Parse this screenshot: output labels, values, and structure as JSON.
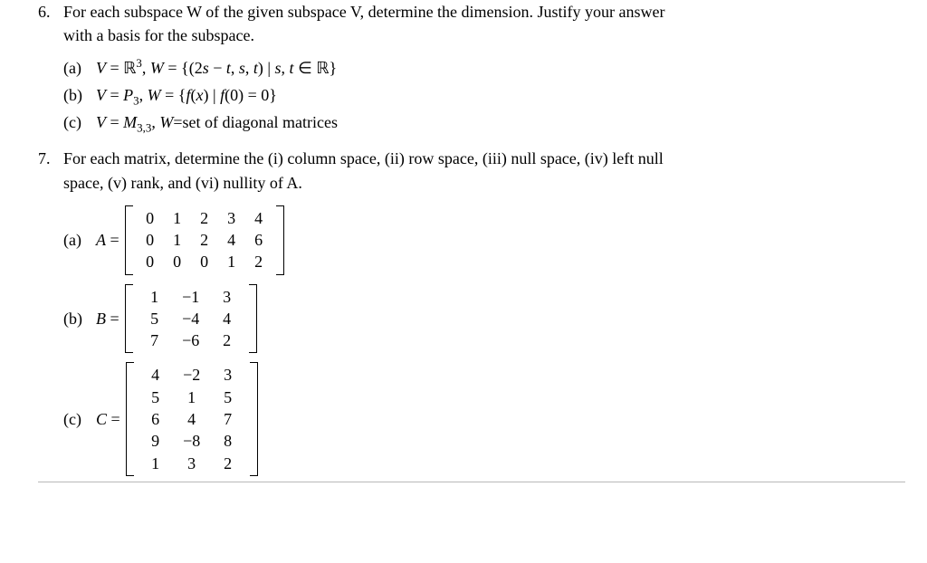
{
  "background_color": "#ffffff",
  "text_color": "#000000",
  "font_family": "Times New Roman",
  "font_size": 18,
  "q6": {
    "number": "6.",
    "prompt_line1": "For each subspace W of the given subspace V, determine the dimension. Justify your answer",
    "prompt_line2": "with a basis for the subspace.",
    "parts": {
      "a": {
        "label": "(a)",
        "text": "V = ℝ³, W = {(2s − t, s, t) | s, t ∈ ℝ}"
      },
      "b": {
        "label": "(b)",
        "text": "V = P₃, W = {f(x) | f(0) = 0}"
      },
      "c": {
        "label": "(c)",
        "text": "V = M₃,₃, W=set of diagonal matrices"
      }
    }
  },
  "q7": {
    "number": "7.",
    "prompt_line1": "For each matrix, determine the (i) column space, (ii) row space, (iii) null space, (iv) left null",
    "prompt_line2": "space, (v) rank, and (vi) nullity of A.",
    "parts": {
      "a": {
        "label": "(a)",
        "lhs": "A =",
        "matrix": {
          "rows": 3,
          "cols": 5,
          "values": [
            [
              "0",
              "1",
              "2",
              "3",
              "4"
            ],
            [
              "0",
              "1",
              "2",
              "4",
              "6"
            ],
            [
              "0",
              "0",
              "0",
              "1",
              "2"
            ]
          ]
        }
      },
      "b": {
        "label": "(b)",
        "lhs": "B =",
        "matrix": {
          "rows": 3,
          "cols": 3,
          "values": [
            [
              "1",
              "−1",
              "3"
            ],
            [
              "5",
              "−4",
              "4"
            ],
            [
              "7",
              "−6",
              "2"
            ]
          ]
        }
      },
      "c": {
        "label": "(c)",
        "lhs": "C =",
        "matrix": {
          "rows": 5,
          "cols": 3,
          "values": [
            [
              "4",
              "−2",
              "3"
            ],
            [
              "5",
              "1",
              "5"
            ],
            [
              "6",
              "4",
              "7"
            ],
            [
              "9",
              "−8",
              "8"
            ],
            [
              "1",
              "3",
              "2"
            ]
          ]
        }
      }
    }
  }
}
